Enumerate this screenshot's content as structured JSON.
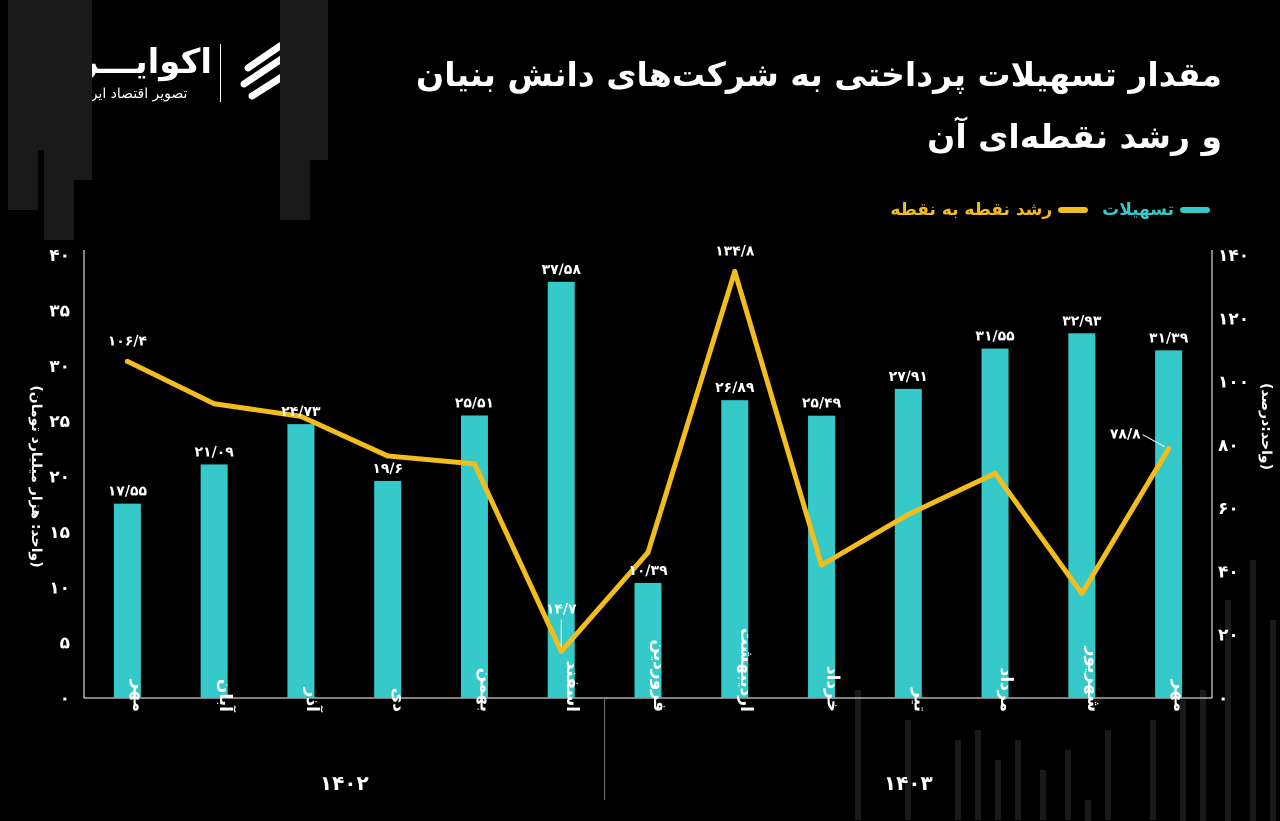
{
  "header": {
    "title_line1": "مقدار تسهیلات پرداختی به شرکت‌های دانش بنیان",
    "title_line2": "و رشد نقطه‌ای آن",
    "logo_name": "اکوایـــران",
    "logo_sub": "تصویر اقتصاد ایران"
  },
  "colors": {
    "bars": "#35c9c9",
    "line": "#f3bd1c",
    "background": "#000000",
    "logo_mark": "#ffffff"
  },
  "icons": {
    "logo": "ecoiran-logo-icon"
  },
  "chart_data": {
    "type": "bar",
    "categories": [
      "مهر",
      "آبان",
      "آذر",
      "دی",
      "بهمن",
      "اسفند",
      "فروردین",
      "اردیبهشت",
      "خرداد",
      "تیر",
      "مرداد",
      "شهریور",
      "مهر"
    ],
    "year_groups": [
      {
        "label": "۱۴۰۲",
        "count": 6
      },
      {
        "label": "۱۴۰۳",
        "count": 7
      }
    ],
    "series": [
      {
        "name": "تسهیلات",
        "type": "bar",
        "axis": "left",
        "values": [
          17.55,
          21.09,
          24.73,
          19.6,
          25.51,
          37.58,
          10.39,
          26.89,
          25.49,
          27.91,
          31.55,
          32.93,
          31.39
        ],
        "labels": [
          "۱۷/۵۵",
          "۲۱/۰۹",
          "۲۴/۷۳",
          "۱۹/۶",
          "۲۵/۵۱",
          "۳۷/۵۸",
          "۱۰/۳۹",
          "۲۶/۸۹",
          "۲۵/۴۹",
          "۲۷/۹۱",
          "۳۱/۵۵",
          "۳۲/۹۳",
          "۳۱/۳۹"
        ]
      },
      {
        "name": "رشد نقطه به نقطه",
        "type": "line",
        "axis": "right",
        "values": [
          106.4,
          93,
          89,
          76.5,
          74,
          14.7,
          46,
          134.8,
          42,
          58,
          71,
          33,
          78.8
        ],
        "labels": [
          "۱۰۶/۴",
          "",
          "",
          "",
          "",
          "۱۴/۷",
          "",
          "۱۳۴/۸",
          "",
          "",
          "",
          "",
          "۷۸/۸"
        ]
      }
    ],
    "y_left": {
      "label": "(واحد: هزار میلیارد تومان)",
      "ylim": [
        0,
        40
      ],
      "ticks": [
        "۰",
        "۵",
        "۱۰",
        "۱۵",
        "۲۰",
        "۲۵",
        "۳۰",
        "۳۵",
        "۴۰"
      ]
    },
    "y_right": {
      "label": "(واحد:درصد)",
      "ylim": [
        0,
        140
      ],
      "ticks": [
        "۰",
        "۲۰",
        "۴۰",
        "۶۰",
        "۸۰",
        "۱۰۰",
        "۱۲۰",
        "۱۴۰"
      ]
    },
    "legend_position": "top-right",
    "grid": false
  }
}
